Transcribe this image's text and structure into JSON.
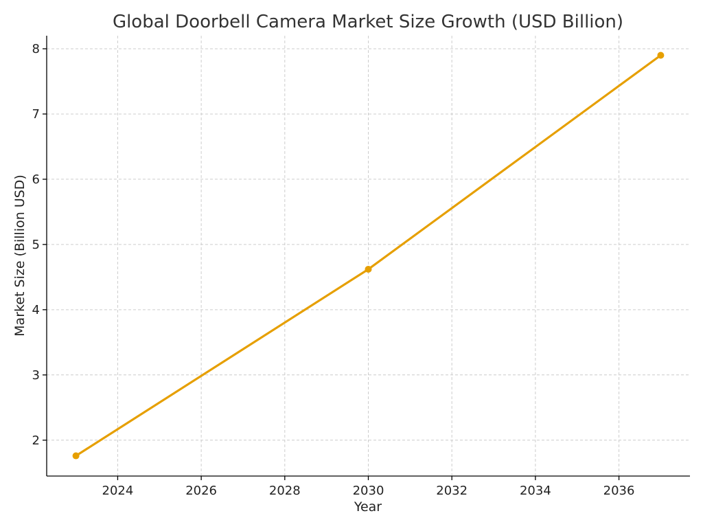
{
  "chart_data": {
    "type": "line",
    "title": "Global Doorbell Camera Market Size Growth (USD Billion)",
    "xlabel": "Year",
    "ylabel": "Market Size (Billion USD)",
    "x_ticks": [
      2024,
      2026,
      2028,
      2030,
      2032,
      2034,
      2036
    ],
    "y_ticks": [
      2,
      3,
      4,
      5,
      6,
      7,
      8
    ],
    "xlim": [
      2022.3,
      2037.7
    ],
    "ylim": [
      1.45,
      8.2
    ],
    "grid": true,
    "series": [
      {
        "color": "#E69F00",
        "x": [
          2023,
          2030,
          2037
        ],
        "y": [
          1.76,
          4.62,
          7.9
        ]
      }
    ]
  }
}
